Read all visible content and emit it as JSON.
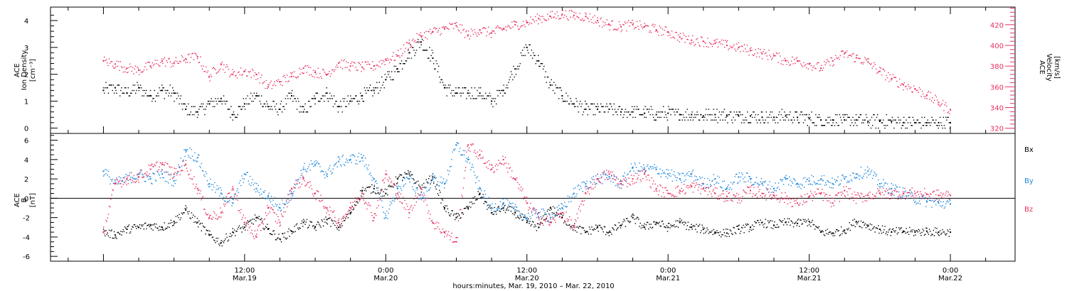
{
  "colors": {
    "black": "#000000",
    "pink": "#e8305e",
    "blue": "#1c86dc"
  },
  "xaxis": {
    "title": "hours:minutes, Mar. 19, 2010 – Mar. 22, 2010",
    "ticks": [
      {
        "time": "12:00",
        "date": "Mar.19",
        "hour": 12
      },
      {
        "time": "0:00",
        "date": "Mar.20",
        "hour": 24
      },
      {
        "time": "12:00",
        "date": "Mar.20",
        "hour": 36
      },
      {
        "time": "0:00",
        "date": "Mar.21",
        "hour": 48
      },
      {
        "time": "12:00",
        "date": "Mar.21",
        "hour": 60
      },
      {
        "time": "0:00",
        "date": "Mar.22",
        "hour": 72
      }
    ]
  },
  "chart_data": [
    {
      "type": "scatter",
      "title": "",
      "xlabel": "hours:minutes, Mar. 19, 2010 – Mar. 22, 2010",
      "ylabel_left": [
        "ACE",
        "Ion Density",
        "[cm⁻³]"
      ],
      "ylabel_right": [
        "ACE",
        "Velocity",
        "[km/s]"
      ],
      "xlim_hours": [
        -4.5,
        77.5
      ],
      "ylim_left": [
        -0.2,
        4.5
      ],
      "ylim_right": [
        315,
        437
      ],
      "yticks_left": [
        0,
        1,
        2,
        3,
        4
      ],
      "yticks_right": [
        320,
        340,
        360,
        380,
        400,
        420
      ],
      "series": [
        {
          "name": "Ion Density",
          "axis": "left",
          "color": "black",
          "x_hours": [
            0,
            1,
            2,
            3,
            4,
            5,
            6,
            7,
            8,
            9,
            10,
            11,
            12,
            13,
            14,
            15,
            16,
            17,
            18,
            19,
            20,
            21,
            22,
            23,
            24,
            25,
            26,
            27,
            28,
            29,
            30,
            31,
            32,
            33,
            34,
            35,
            36,
            37,
            38,
            39,
            40,
            41,
            42,
            43,
            44,
            45,
            46,
            47,
            48,
            49,
            50,
            51,
            52,
            53,
            54,
            55,
            56,
            57,
            58,
            59,
            60,
            61,
            62,
            63,
            64,
            65,
            66,
            67,
            68,
            69,
            70,
            71,
            72
          ],
          "values": [
            1.4,
            1.5,
            1.3,
            1.5,
            1.2,
            1.4,
            1.3,
            0.7,
            0.6,
            0.9,
            1.1,
            0.5,
            0.9,
            1.2,
            0.8,
            0.7,
            1.2,
            0.6,
            1.1,
            1.3,
            0.8,
            1.0,
            1.2,
            1.4,
            1.8,
            2.2,
            2.8,
            3.2,
            2.6,
            1.5,
            1.3,
            1.3,
            1.3,
            1.0,
            1.4,
            2.2,
            3.0,
            2.5,
            1.6,
            1.2,
            0.9,
            0.7,
            0.7,
            0.7,
            0.6,
            0.6,
            0.55,
            0.5,
            0.55,
            0.5,
            0.5,
            0.45,
            0.5,
            0.45,
            0.45,
            0.45,
            0.4,
            0.4,
            0.45,
            0.4,
            0.35,
            0.3,
            0.3,
            0.3,
            0.3,
            0.25,
            0.25,
            0.25,
            0.2,
            0.2,
            0.2,
            0.2,
            0.2
          ]
        },
        {
          "name": "Velocity",
          "axis": "right",
          "color": "pink",
          "x_hours": [
            0,
            1,
            2,
            3,
            4,
            5,
            6,
            7,
            8,
            9,
            10,
            11,
            12,
            13,
            14,
            15,
            16,
            17,
            18,
            19,
            20,
            21,
            22,
            23,
            24,
            25,
            26,
            27,
            28,
            29,
            30,
            31,
            32,
            33,
            34,
            35,
            36,
            37,
            38,
            39,
            40,
            41,
            42,
            43,
            44,
            45,
            46,
            47,
            48,
            49,
            50,
            51,
            52,
            53,
            54,
            55,
            56,
            57,
            58,
            59,
            60,
            61,
            62,
            63,
            64,
            65,
            66,
            67,
            68,
            69,
            70,
            71,
            72
          ],
          "values": [
            385,
            382,
            378,
            376,
            380,
            385,
            383,
            387,
            389,
            370,
            382,
            372,
            375,
            372,
            360,
            365,
            370,
            378,
            374,
            372,
            383,
            380,
            379,
            380,
            386,
            390,
            402,
            409,
            413,
            416,
            419,
            410,
            415,
            412,
            416,
            420,
            422,
            426,
            428,
            430,
            429,
            428,
            424,
            420,
            418,
            420,
            418,
            415,
            413,
            408,
            405,
            404,
            402,
            400,
            398,
            395,
            392,
            390,
            385,
            385,
            382,
            378,
            385,
            392,
            388,
            384,
            375,
            368,
            362,
            358,
            352,
            345,
            338
          ]
        }
      ]
    },
    {
      "type": "scatter",
      "title": "",
      "xlabel": "hours:minutes, Mar. 19, 2010 – Mar. 22, 2010",
      "ylabel_left": [
        "ACE",
        "B",
        "[nT]"
      ],
      "xlim_hours": [
        -4.5,
        77.5
      ],
      "ylim": [
        -6.5,
        6.7
      ],
      "yticks": [
        -6,
        -4,
        -2,
        0,
        2,
        4,
        6
      ],
      "legend_position": "right",
      "series": [
        {
          "name": "Bx",
          "color": "black",
          "x_hours": [
            0,
            1,
            2,
            3,
            4,
            5,
            6,
            7,
            8,
            9,
            10,
            11,
            12,
            13,
            14,
            15,
            16,
            17,
            18,
            19,
            20,
            21,
            22,
            23,
            24,
            25,
            26,
            27,
            28,
            29,
            30,
            31,
            32,
            33,
            34,
            35,
            36,
            37,
            38,
            39,
            40,
            41,
            42,
            43,
            44,
            45,
            46,
            47,
            48,
            49,
            50,
            51,
            52,
            53,
            54,
            55,
            56,
            57,
            58,
            59,
            60,
            61,
            62,
            63,
            64,
            65,
            66,
            67,
            68,
            69,
            70,
            71,
            72
          ],
          "values": [
            -3.5,
            -3.8,
            -3.2,
            -3.0,
            -2.8,
            -3.0,
            -2.4,
            -1.2,
            -2.5,
            -3.8,
            -4.6,
            -3.5,
            -3.0,
            -2.0,
            -3.2,
            -4.2,
            -3.4,
            -2.5,
            -3.0,
            -2.2,
            -3.0,
            -1.5,
            0.8,
            1.0,
            0.5,
            2.0,
            2.5,
            1.0,
            2.2,
            -1.0,
            -2.0,
            -1.0,
            0.5,
            -1.5,
            -1.0,
            -1.5,
            -2.5,
            -3.0,
            -1.0,
            -2.0,
            -3.0,
            -3.5,
            -3.0,
            -3.5,
            -2.8,
            -2.0,
            -3.0,
            -2.5,
            -3.0,
            -2.5,
            -3.0,
            -3.2,
            -3.5,
            -3.6,
            -3.2,
            -3.0,
            -2.5,
            -2.8,
            -2.5,
            -2.6,
            -2.4,
            -3.5,
            -3.6,
            -3.3,
            -2.4,
            -2.8,
            -3.2,
            -3.5,
            -3.4,
            -3.5,
            -3.4,
            -3.5,
            -3.5
          ]
        },
        {
          "name": "By",
          "color": "blue",
          "x_hours": [
            0,
            1,
            2,
            3,
            4,
            5,
            6,
            7,
            8,
            9,
            10,
            11,
            12,
            13,
            14,
            15,
            16,
            17,
            18,
            19,
            20,
            21,
            22,
            23,
            24,
            25,
            26,
            27,
            28,
            29,
            30,
            31,
            32,
            33,
            34,
            35,
            36,
            37,
            38,
            39,
            40,
            41,
            42,
            43,
            44,
            45,
            46,
            47,
            48,
            49,
            50,
            51,
            52,
            53,
            54,
            55,
            56,
            57,
            58,
            59,
            60,
            61,
            62,
            63,
            64,
            65,
            66,
            67,
            68,
            69,
            70,
            71,
            72
          ],
          "values": [
            2.8,
            1.5,
            2.0,
            2.5,
            2.0,
            2.5,
            1.8,
            5.0,
            4.2,
            1.5,
            0.5,
            -0.5,
            2.5,
            1.0,
            0.2,
            -1.0,
            0.5,
            3.0,
            3.5,
            2.5,
            3.8,
            4.0,
            4.2,
            2.0,
            -2.0,
            1.0,
            2.0,
            0.0,
            2.0,
            1.5,
            5.5,
            4.0,
            1.0,
            -1.0,
            -0.5,
            -1.2,
            -2.0,
            -1.5,
            -2.0,
            -1.0,
            0.5,
            1.5,
            2.0,
            2.2,
            1.5,
            3.2,
            3.0,
            3.0,
            2.5,
            2.0,
            2.5,
            1.5,
            2.0,
            1.0,
            2.2,
            2.0,
            1.5,
            1.0,
            2.0,
            1.5,
            1.8,
            2.0,
            1.5,
            2.0,
            2.5,
            2.8,
            1.5,
            1.0,
            0.5,
            0.0,
            -0.3,
            -0.5,
            -0.6
          ]
        },
        {
          "name": "Bz",
          "color": "pink",
          "x_hours": [
            0,
            1,
            2,
            3,
            4,
            5,
            6,
            7,
            8,
            9,
            10,
            11,
            12,
            13,
            14,
            15,
            16,
            17,
            18,
            19,
            20,
            21,
            22,
            23,
            24,
            25,
            26,
            27,
            28,
            29,
            30,
            31,
            32,
            33,
            34,
            35,
            36,
            37,
            38,
            39,
            40,
            41,
            42,
            43,
            44,
            45,
            46,
            47,
            48,
            49,
            50,
            51,
            52,
            53,
            54,
            55,
            56,
            57,
            58,
            59,
            60,
            61,
            62,
            63,
            64,
            65,
            66,
            67,
            68,
            69,
            70,
            71,
            72
          ],
          "values": [
            -3.5,
            1.5,
            2.0,
            2.2,
            3.0,
            3.5,
            2.5,
            3.5,
            1.0,
            -2.0,
            -1.5,
            1.0,
            -2.5,
            -4.0,
            -1.0,
            -2.5,
            1.0,
            2.0,
            0.5,
            -1.0,
            -2.5,
            -1.0,
            0.5,
            -2.0,
            2.5,
            0.5,
            -1.5,
            1.0,
            -2.5,
            -3.5,
            -4.5,
            5.5,
            4.5,
            3.0,
            4.0,
            2.0,
            -0.5,
            -2.0,
            -2.5,
            -1.5,
            -3.0,
            0.5,
            2.0,
            2.5,
            1.5,
            2.0,
            2.5,
            1.0,
            0.5,
            0.8,
            1.2,
            1.0,
            0.5,
            0.2,
            0.0,
            0.8,
            0.5,
            0.3,
            0.0,
            -0.5,
            0.2,
            0.5,
            -0.5,
            0.8,
            0.0,
            0.3,
            0.5,
            0.5,
            0.5,
            0.5,
            0.4,
            0.3,
            0.3
          ]
        }
      ]
    }
  ]
}
